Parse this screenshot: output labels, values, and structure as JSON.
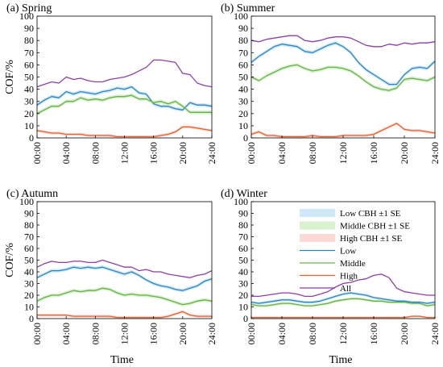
{
  "chart_data": [
    {
      "type": "line",
      "panel_label": "(a) Spring",
      "ylabel": "COF/%",
      "xlabel": "",
      "ylim": [
        0,
        100
      ],
      "yticks": [
        0,
        10,
        20,
        30,
        40,
        50,
        60,
        70,
        80,
        90,
        100
      ],
      "x": [
        0,
        1,
        2,
        3,
        4,
        5,
        6,
        7,
        8,
        9,
        10,
        11,
        12,
        13,
        14,
        15,
        16,
        17,
        18,
        19,
        20,
        21,
        22,
        23,
        24
      ],
      "xtick_labels": [
        "00:00",
        "04:00",
        "08:00",
        "12:00",
        "16:00",
        "20:00",
        "24:00"
      ],
      "series": [
        {
          "name": "Low",
          "color": "#2e86c1",
          "values": [
            27,
            31,
            34,
            33,
            38,
            36,
            38,
            37,
            36,
            38,
            39,
            41,
            40,
            42,
            37,
            36,
            28,
            26,
            26,
            24,
            23,
            29,
            27,
            27,
            26
          ],
          "se": 1.5
        },
        {
          "name": "Middle",
          "color": "#6ab04c",
          "values": [
            20,
            23,
            26,
            26,
            30,
            30,
            33,
            31,
            32,
            31,
            33,
            34,
            34,
            35,
            32,
            32,
            29,
            30,
            28,
            30,
            26,
            21,
            21,
            21,
            21
          ],
          "se": 1.5
        },
        {
          "name": "High",
          "color": "#e8602c",
          "values": [
            6,
            5,
            4,
            4,
            3,
            3,
            3,
            2,
            2,
            2,
            2,
            1,
            1,
            1,
            1,
            1,
            1,
            2,
            3,
            5,
            9,
            9,
            8,
            7,
            6
          ],
          "se": 1.2
        },
        {
          "name": "All",
          "color": "#8e3fa8",
          "values": [
            42,
            44,
            46,
            45,
            50,
            48,
            49,
            47,
            46,
            46,
            48,
            49,
            50,
            52,
            55,
            58,
            64,
            64,
            63,
            62,
            53,
            52,
            45,
            43,
            42
          ]
        }
      ]
    },
    {
      "type": "line",
      "panel_label": "(b) Summer",
      "ylabel": "",
      "xlabel": "",
      "ylim": [
        0,
        100
      ],
      "yticks": [
        0,
        10,
        20,
        30,
        40,
        50,
        60,
        70,
        80,
        90,
        100
      ],
      "x": [
        0,
        1,
        2,
        3,
        4,
        5,
        6,
        7,
        8,
        9,
        10,
        11,
        12,
        13,
        14,
        15,
        16,
        17,
        18,
        19,
        20,
        21,
        22,
        23,
        24
      ],
      "xtick_labels": [
        "00:00",
        "04:00",
        "08:00",
        "12:00",
        "16:00",
        "20:00",
        "24:00"
      ],
      "series": [
        {
          "name": "Low",
          "color": "#2e86c1",
          "values": [
            62,
            67,
            71,
            75,
            77,
            76,
            75,
            71,
            70,
            73,
            76,
            78,
            75,
            70,
            62,
            56,
            52,
            48,
            44,
            44,
            52,
            57,
            58,
            57,
            63
          ],
          "se": 1.5
        },
        {
          "name": "Middle",
          "color": "#6ab04c",
          "values": [
            50,
            47,
            51,
            54,
            57,
            59,
            60,
            57,
            55,
            56,
            58,
            58,
            57,
            55,
            51,
            46,
            42,
            40,
            39,
            41,
            48,
            49,
            48,
            47,
            50
          ],
          "se": 1.5
        },
        {
          "name": "High",
          "color": "#e8602c",
          "values": [
            3,
            5,
            2,
            2,
            1,
            1,
            1,
            1,
            2,
            1,
            1,
            1,
            2,
            2,
            2,
            2,
            3,
            6,
            9,
            12,
            7,
            6,
            6,
            5,
            4
          ],
          "se": 1.2
        },
        {
          "name": "All",
          "color": "#8e3fa8",
          "values": [
            80,
            79,
            81,
            82,
            83,
            84,
            84,
            80,
            79,
            80,
            82,
            83,
            83,
            82,
            79,
            76,
            75,
            75,
            77,
            76,
            78,
            77,
            78,
            78,
            79
          ]
        }
      ]
    },
    {
      "type": "line",
      "panel_label": "(c) Autumn",
      "ylabel": "COF/%",
      "xlabel": "Time",
      "ylim": [
        0,
        100
      ],
      "yticks": [
        0,
        10,
        20,
        30,
        40,
        50,
        60,
        70,
        80,
        90,
        100
      ],
      "x": [
        0,
        1,
        2,
        3,
        4,
        5,
        6,
        7,
        8,
        9,
        10,
        11,
        12,
        13,
        14,
        15,
        16,
        17,
        18,
        19,
        20,
        21,
        22,
        23,
        24
      ],
      "xtick_labels": [
        "00:00",
        "04:00",
        "08:00",
        "12:00",
        "16:00",
        "20:00",
        "24:00"
      ],
      "series": [
        {
          "name": "Low",
          "color": "#2e86c1",
          "values": [
            35,
            38,
            41,
            41,
            42,
            44,
            43,
            44,
            43,
            44,
            42,
            40,
            38,
            40,
            37,
            33,
            30,
            28,
            27,
            25,
            24,
            26,
            28,
            32,
            34
          ],
          "se": 1.5
        },
        {
          "name": "Middle",
          "color": "#6ab04c",
          "values": [
            15,
            18,
            20,
            20,
            22,
            24,
            23,
            24,
            24,
            26,
            25,
            22,
            20,
            21,
            20,
            20,
            19,
            18,
            16,
            14,
            12,
            13,
            15,
            16,
            15
          ],
          "se": 1.5
        },
        {
          "name": "High",
          "color": "#e8602c",
          "values": [
            3,
            3,
            3,
            3,
            3,
            2,
            2,
            2,
            2,
            2,
            2,
            1,
            1,
            1,
            1,
            1,
            1,
            1,
            2,
            4,
            6,
            3,
            2,
            2,
            2
          ],
          "se": 1.2
        },
        {
          "name": "All",
          "color": "#8e3fa8",
          "values": [
            44,
            47,
            49,
            48,
            48,
            49,
            49,
            48,
            48,
            50,
            48,
            46,
            44,
            44,
            41,
            42,
            40,
            40,
            38,
            37,
            36,
            35,
            37,
            38,
            41
          ]
        }
      ]
    },
    {
      "type": "line",
      "panel_label": "(d) Winter",
      "ylabel": "",
      "xlabel": "Time",
      "ylim": [
        0,
        100
      ],
      "yticks": [
        0,
        10,
        20,
        30,
        40,
        50,
        60,
        70,
        80,
        90,
        100
      ],
      "x": [
        0,
        1,
        2,
        3,
        4,
        5,
        6,
        7,
        8,
        9,
        10,
        11,
        12,
        13,
        14,
        15,
        16,
        17,
        18,
        19,
        20,
        21,
        22,
        23,
        24
      ],
      "xtick_labels": [
        "00:00",
        "04:00",
        "08:00",
        "12:00",
        "16:00",
        "20:00",
        "24:00"
      ],
      "legend": {
        "placement": "top-right",
        "entries": [
          "Low CBH ±1 SE",
          "Middle CBH  ±1 SE",
          "High CBH ±1 SE",
          "Low",
          "Middle",
          "High",
          "All"
        ]
      },
      "series": [
        {
          "name": "Low",
          "color": "#2e86c1",
          "values": [
            14,
            13,
            14,
            15,
            16,
            16,
            15,
            14,
            14,
            15,
            17,
            19,
            21,
            22,
            21,
            20,
            18,
            17,
            16,
            15,
            15,
            14,
            14,
            13,
            14
          ],
          "se": 1.2
        },
        {
          "name": "Middle",
          "color": "#6ab04c",
          "values": [
            12,
            11,
            11,
            12,
            13,
            13,
            12,
            11,
            11,
            12,
            13,
            15,
            16,
            17,
            17,
            16,
            15,
            15,
            14,
            14,
            14,
            13,
            13,
            11,
            12
          ],
          "se": 1.2
        },
        {
          "name": "High",
          "color": "#e8602c",
          "values": [
            1,
            1,
            1,
            1,
            1,
            1,
            1,
            1,
            1,
            1,
            1,
            1,
            1,
            1,
            1,
            1,
            1,
            1,
            1,
            1,
            1,
            2,
            2,
            1,
            1
          ],
          "se": 0.8
        },
        {
          "name": "All",
          "color": "#8e3fa8",
          "values": [
            19,
            19,
            20,
            21,
            22,
            22,
            21,
            19,
            19,
            21,
            23,
            27,
            30,
            31,
            33,
            34,
            37,
            38,
            35,
            26,
            23,
            22,
            21,
            20,
            20
          ]
        }
      ]
    }
  ],
  "colors": {
    "low_band": "#cfe8f7",
    "middle_band": "#d8f2cf",
    "high_band": "#fbd9d6"
  }
}
